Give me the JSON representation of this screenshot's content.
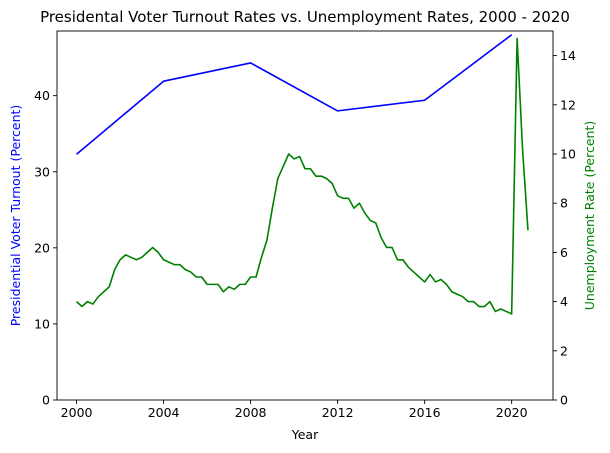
{
  "chart_data": {
    "type": "line",
    "title": "Presidental Voter Turnout Rates vs. Unemployment Rates, 2000 - 2020",
    "xlabel": "Year",
    "ylabel_left": "Presidential Voter Turnout (Percent)",
    "ylabel_right": "Unemployment Rate (Percent)",
    "xlim": [
      1999.1,
      2021.9
    ],
    "ylim_left": [
      0,
      48.5
    ],
    "ylim_right": [
      0,
      15.0
    ],
    "x_ticks": [
      2000,
      2004,
      2008,
      2012,
      2016,
      2020
    ],
    "y_ticks_left": [
      0,
      10,
      20,
      30,
      40
    ],
    "y_ticks_right": [
      0,
      2,
      4,
      6,
      8,
      10,
      12,
      14
    ],
    "grid": false,
    "series": [
      {
        "axis": "left",
        "color": "#0000ff",
        "x": [
          2000,
          2004,
          2008,
          2012,
          2016,
          2020
        ],
        "values": [
          32.3,
          41.9,
          44.3,
          38.0,
          39.4,
          48.0
        ]
      },
      {
        "axis": "right",
        "color": "#008000",
        "x": [
          2000.0,
          2000.25,
          2000.5,
          2000.75,
          2001.0,
          2001.25,
          2001.5,
          2001.75,
          2002.0,
          2002.25,
          2002.5,
          2002.75,
          2003.0,
          2003.25,
          2003.5,
          2003.75,
          2004.0,
          2004.25,
          2004.5,
          2004.75,
          2005.0,
          2005.25,
          2005.5,
          2005.75,
          2006.0,
          2006.25,
          2006.5,
          2006.75,
          2007.0,
          2007.25,
          2007.5,
          2007.75,
          2008.0,
          2008.25,
          2008.5,
          2008.75,
          2009.0,
          2009.25,
          2009.5,
          2009.75,
          2010.0,
          2010.25,
          2010.5,
          2010.75,
          2011.0,
          2011.25,
          2011.5,
          2011.75,
          2012.0,
          2012.25,
          2012.5,
          2012.75,
          2013.0,
          2013.25,
          2013.5,
          2013.75,
          2014.0,
          2014.25,
          2014.5,
          2014.75,
          2015.0,
          2015.25,
          2015.5,
          2015.75,
          2016.0,
          2016.25,
          2016.5,
          2016.75,
          2017.0,
          2017.25,
          2017.5,
          2017.75,
          2018.0,
          2018.25,
          2018.5,
          2018.75,
          2019.0,
          2019.25,
          2019.5,
          2019.75,
          2020.0,
          2020.25,
          2020.5,
          2020.75
        ],
        "values": [
          4.0,
          3.8,
          4.0,
          3.9,
          4.2,
          4.4,
          4.6,
          5.3,
          5.7,
          5.9,
          5.8,
          5.7,
          5.8,
          6.0,
          6.2,
          6.0,
          5.7,
          5.6,
          5.5,
          5.5,
          5.3,
          5.2,
          5.0,
          5.0,
          4.7,
          4.7,
          4.7,
          4.4,
          4.6,
          4.5,
          4.7,
          4.7,
          5.0,
          5.0,
          5.8,
          6.5,
          7.8,
          9.0,
          9.5,
          10.0,
          9.8,
          9.9,
          9.4,
          9.4,
          9.1,
          9.1,
          9.0,
          8.8,
          8.3,
          8.2,
          8.2,
          7.8,
          8.0,
          7.6,
          7.3,
          7.2,
          6.6,
          6.2,
          6.2,
          5.7,
          5.7,
          5.4,
          5.2,
          5.0,
          4.8,
          5.1,
          4.8,
          4.9,
          4.7,
          4.4,
          4.3,
          4.2,
          4.0,
          4.0,
          3.8,
          3.8,
          4.0,
          3.6,
          3.7,
          3.6,
          3.5,
          14.7,
          10.2,
          6.9
        ]
      }
    ]
  }
}
